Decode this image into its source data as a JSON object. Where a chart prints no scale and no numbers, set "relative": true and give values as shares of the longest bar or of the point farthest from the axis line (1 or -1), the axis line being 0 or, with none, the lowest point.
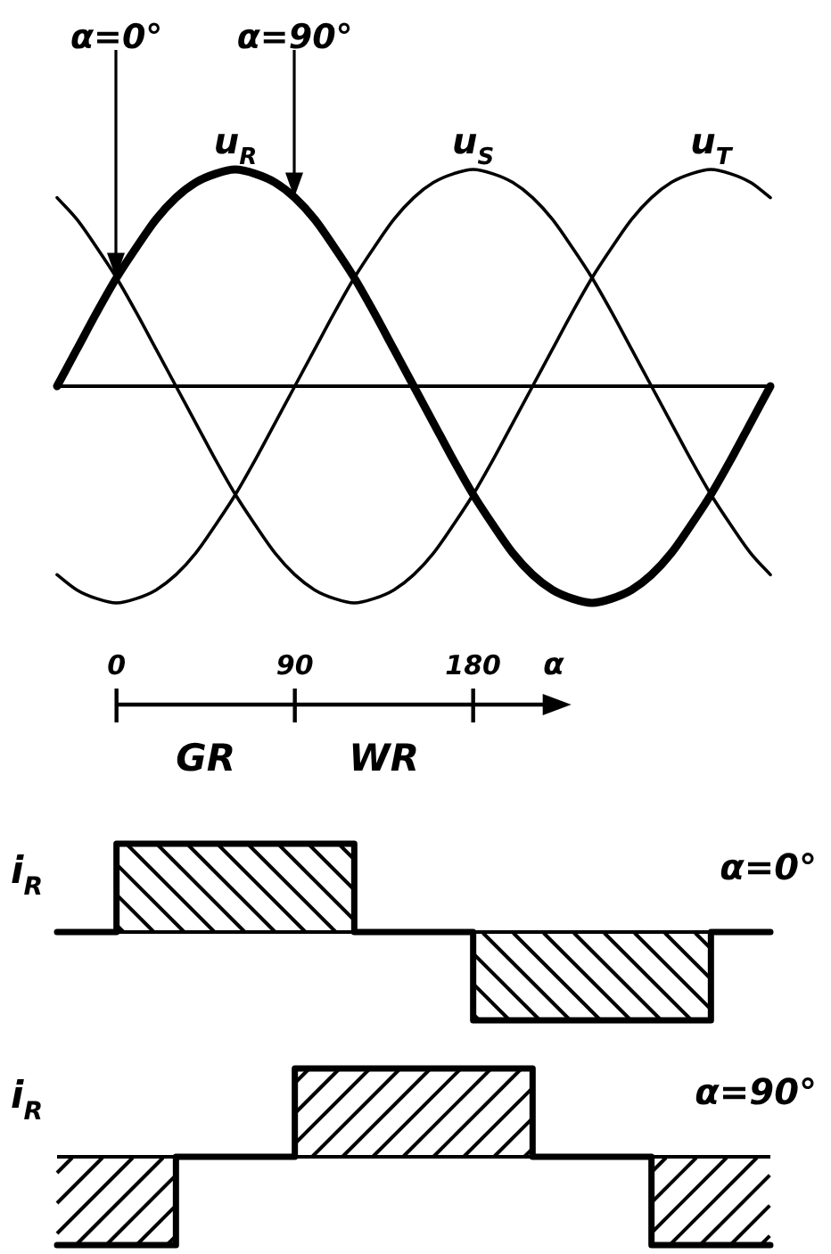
{
  "chart_data": [
    {
      "type": "line",
      "x": [
        -30,
        -20,
        -10,
        0,
        10,
        20,
        30,
        40,
        50,
        60,
        70,
        80,
        90,
        100,
        110,
        120,
        130,
        140,
        150,
        160,
        170,
        180,
        190,
        200,
        210,
        220,
        230,
        240,
        250,
        260,
        270,
        280,
        290,
        300,
        310,
        320,
        330
      ],
      "xlim": [
        -30,
        330
      ],
      "xticks": [
        0,
        90,
        180
      ],
      "xlabel": "α",
      "relative": true,
      "tick_labels": "x",
      "series": [
        {
          "name": "u$_{R}$",
          "color": "#000000",
          "values": [
            0,
            0.17,
            0.34,
            0.5,
            0.64,
            0.77,
            0.87,
            0.94,
            0.98,
            1,
            0.98,
            0.94,
            0.87,
            0.77,
            0.64,
            0.5,
            0.34,
            0.17,
            0,
            -0.17,
            -0.34,
            -0.5,
            -0.64,
            -0.77,
            -0.87,
            -0.94,
            -0.98,
            -1,
            -0.98,
            -0.94,
            -0.87,
            -0.77,
            -0.64,
            -0.5,
            -0.34,
            -0.17,
            0
          ]
        },
        {
          "name": "u$_{S}$",
          "color": "#000000",
          "values": [
            -0.87,
            -0.94,
            -0.98,
            -1,
            -0.98,
            -0.94,
            -0.87,
            -0.77,
            -0.64,
            -0.5,
            -0.34,
            -0.17,
            0,
            0.17,
            0.34,
            0.5,
            0.64,
            0.77,
            0.87,
            0.94,
            0.98,
            1,
            0.98,
            0.94,
            0.87,
            0.77,
            0.64,
            0.5,
            0.34,
            0.17,
            0,
            -0.17,
            -0.34,
            -0.5,
            -0.64,
            -0.77,
            -0.87
          ]
        },
        {
          "name": "u$_{T}$",
          "color": "#000000",
          "values": [
            0.87,
            0.77,
            0.64,
            0.5,
            0.34,
            0.17,
            0,
            -0.17,
            -0.34,
            -0.5,
            -0.64,
            -0.77,
            -0.87,
            -0.94,
            -0.98,
            -1,
            -0.98,
            -0.94,
            -0.87,
            -0.77,
            -0.64,
            -0.5,
            -0.34,
            -0.17,
            0,
            0.17,
            0.34,
            0.5,
            0.64,
            0.77,
            0.87,
            0.94,
            0.98,
            1,
            0.98,
            0.94,
            0.87
          ]
        }
      ],
      "annotations": [
        {
          "text": "α=0°",
          "x": 0
        },
        {
          "text": "α=90°",
          "x": 90
        },
        "GR",
        "WR"
      ]
    },
    {
      "type": "step",
      "x": [
        -30,
        0,
        120,
        180,
        300,
        330
      ],
      "xlim": [
        -30,
        330
      ],
      "relative": true,
      "tick_labels": false,
      "ylabel": "i$_{R}$",
      "series": [
        {
          "color": "#000000",
          "values": [
            0,
            1,
            0,
            -1,
            0,
            0
          ]
        }
      ],
      "annotations": [
        "α=0°"
      ]
    },
    {
      "type": "step",
      "x": [
        -30,
        30,
        90,
        210,
        270,
        330
      ],
      "xlim": [
        -30,
        330
      ],
      "relative": true,
      "tick_labels": false,
      "ylabel": "i$_{R}$",
      "series": [
        {
          "color": "#000000",
          "values": [
            -1,
            0,
            1,
            0,
            -1,
            -1
          ]
        }
      ],
      "annotations": [
        "α=90°"
      ]
    }
  ]
}
